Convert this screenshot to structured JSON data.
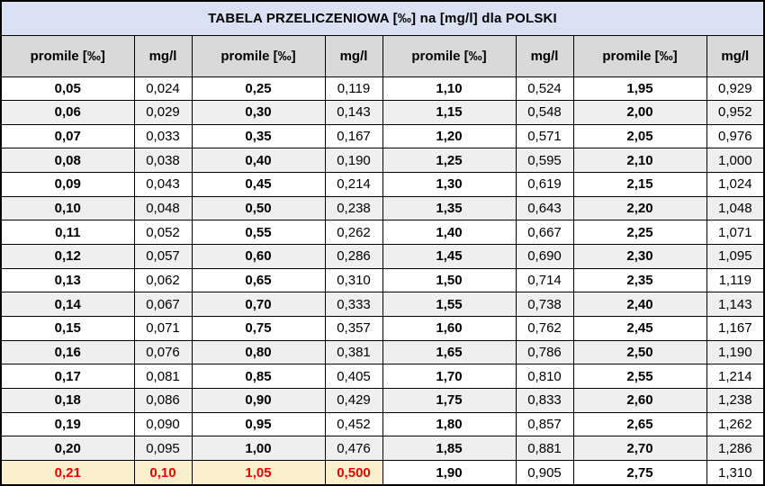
{
  "title": "TABELA PRZELICZENIOWA [‰] na [mg/l] dla POLSKI",
  "colors": {
    "title_bg": "#dae1f3",
    "header_bg": "#d9d9d9",
    "stripe_bg": "#efefef",
    "plain_bg": "#ffffff",
    "highlight_bg": "#fbf0ce",
    "highlight_text": "#e80000",
    "border": "#000000",
    "text": "#000000"
  },
  "highlight": {
    "row_index": 16,
    "col_count": 4
  },
  "chart_data": {
    "type": "table",
    "title": "TABELA PRZELICZENIOWA [‰] na [mg/l] dla POLSKI",
    "columns": [
      "promile [‰]",
      "mg/l",
      "promile [‰]",
      "mg/l",
      "promile [‰]",
      "mg/l",
      "promile [‰]",
      "mg/l"
    ],
    "rows": [
      [
        "0,05",
        "0,024",
        "0,25",
        "0,119",
        "1,10",
        "0,524",
        "1,95",
        "0,929"
      ],
      [
        "0,06",
        "0,029",
        "0,30",
        "0,143",
        "1,15",
        "0,548",
        "2,00",
        "0,952"
      ],
      [
        "0,07",
        "0,033",
        "0,35",
        "0,167",
        "1,20",
        "0,571",
        "2,05",
        "0,976"
      ],
      [
        "0,08",
        "0,038",
        "0,40",
        "0,190",
        "1,25",
        "0,595",
        "2,10",
        "1,000"
      ],
      [
        "0,09",
        "0,043",
        "0,45",
        "0,214",
        "1,30",
        "0,619",
        "2,15",
        "1,024"
      ],
      [
        "0,10",
        "0,048",
        "0,50",
        "0,238",
        "1,35",
        "0,643",
        "2,20",
        "1,048"
      ],
      [
        "0,11",
        "0,052",
        "0,55",
        "0,262",
        "1,40",
        "0,667",
        "2,25",
        "1,071"
      ],
      [
        "0,12",
        "0,057",
        "0,60",
        "0,286",
        "1,45",
        "0,690",
        "2,30",
        "1,095"
      ],
      [
        "0,13",
        "0,062",
        "0,65",
        "0,310",
        "1,50",
        "0,714",
        "2,35",
        "1,119"
      ],
      [
        "0,14",
        "0,067",
        "0,70",
        "0,333",
        "1,55",
        "0,738",
        "2,40",
        "1,143"
      ],
      [
        "0,15",
        "0,071",
        "0,75",
        "0,357",
        "1,60",
        "0,762",
        "2,45",
        "1,167"
      ],
      [
        "0,16",
        "0,076",
        "0,80",
        "0,381",
        "1,65",
        "0,786",
        "2,50",
        "1,190"
      ],
      [
        "0,17",
        "0,081",
        "0,85",
        "0,405",
        "1,70",
        "0,810",
        "2,55",
        "1,214"
      ],
      [
        "0,18",
        "0,086",
        "0,90",
        "0,429",
        "1,75",
        "0,833",
        "2,60",
        "1,238"
      ],
      [
        "0,19",
        "0,090",
        "0,95",
        "0,452",
        "1,80",
        "0,857",
        "2,65",
        "1,262"
      ],
      [
        "0,20",
        "0,095",
        "1,00",
        "0,476",
        "1,85",
        "0,881",
        "2,70",
        "1,286"
      ],
      [
        "0,21",
        "0,10",
        "1,05",
        "0,500",
        "1,90",
        "0,905",
        "2,75",
        "1,310"
      ]
    ]
  }
}
